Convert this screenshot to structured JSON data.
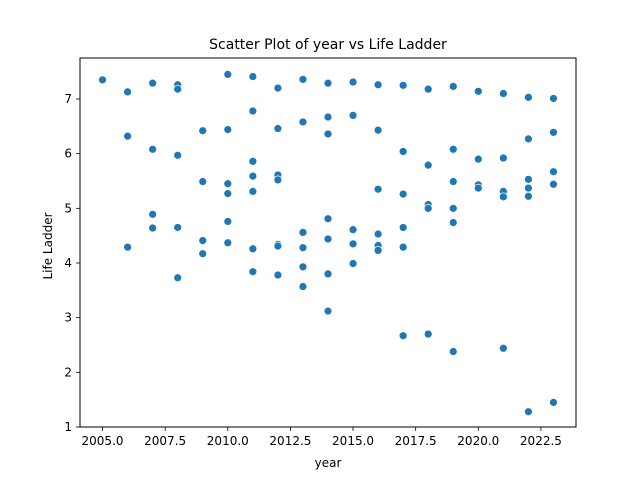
{
  "chart_data": {
    "type": "scatter",
    "title": "Scatter Plot of year vs Life Ladder",
    "xlabel": "year",
    "ylabel": "Life Ladder",
    "xlim": [
      2004.1,
      2023.9
    ],
    "ylim": [
      1.0,
      7.75
    ],
    "xticks": [
      2005.0,
      2007.5,
      2010.0,
      2012.5,
      2015.0,
      2017.5,
      2020.0,
      2022.5
    ],
    "xtick_labels": [
      "2005.0",
      "2007.5",
      "2010.0",
      "2012.5",
      "2015.0",
      "2017.5",
      "2020.0",
      "2022.5"
    ],
    "yticks": [
      1,
      2,
      3,
      4,
      5,
      6,
      7
    ],
    "ytick_labels": [
      "1",
      "2",
      "3",
      "4",
      "5",
      "6",
      "7"
    ],
    "grid": false,
    "marker_color": "#1f77b4",
    "points": [
      {
        "x": 2005,
        "y": 7.35
      },
      {
        "x": 2006,
        "y": 7.13
      },
      {
        "x": 2006,
        "y": 6.32
      },
      {
        "x": 2006,
        "y": 4.29
      },
      {
        "x": 2007,
        "y": 7.29
      },
      {
        "x": 2007,
        "y": 6.08
      },
      {
        "x": 2007,
        "y": 4.89
      },
      {
        "x": 2007,
        "y": 4.64
      },
      {
        "x": 2008,
        "y": 7.26
      },
      {
        "x": 2008,
        "y": 7.18
      },
      {
        "x": 2008,
        "y": 5.97
      },
      {
        "x": 2008,
        "y": 4.65
      },
      {
        "x": 2008,
        "y": 3.73
      },
      {
        "x": 2009,
        "y": 6.42
      },
      {
        "x": 2009,
        "y": 5.49
      },
      {
        "x": 2009,
        "y": 4.41
      },
      {
        "x": 2009,
        "y": 4.17
      },
      {
        "x": 2010,
        "y": 7.45
      },
      {
        "x": 2010,
        "y": 6.44
      },
      {
        "x": 2010,
        "y": 5.45
      },
      {
        "x": 2010,
        "y": 5.27
      },
      {
        "x": 2010,
        "y": 4.76
      },
      {
        "x": 2010,
        "y": 4.37
      },
      {
        "x": 2011,
        "y": 7.41
      },
      {
        "x": 2011,
        "y": 6.78
      },
      {
        "x": 2011,
        "y": 5.86
      },
      {
        "x": 2011,
        "y": 5.59
      },
      {
        "x": 2011,
        "y": 5.31
      },
      {
        "x": 2011,
        "y": 4.26
      },
      {
        "x": 2011,
        "y": 3.84
      },
      {
        "x": 2012,
        "y": 7.2
      },
      {
        "x": 2012,
        "y": 6.46
      },
      {
        "x": 2012,
        "y": 5.61
      },
      {
        "x": 2012,
        "y": 5.52
      },
      {
        "x": 2012,
        "y": 4.34
      },
      {
        "x": 2012,
        "y": 4.31
      },
      {
        "x": 2012,
        "y": 3.78
      },
      {
        "x": 2013,
        "y": 7.36
      },
      {
        "x": 2013,
        "y": 6.58
      },
      {
        "x": 2013,
        "y": 4.56
      },
      {
        "x": 2013,
        "y": 4.28
      },
      {
        "x": 2013,
        "y": 3.93
      },
      {
        "x": 2013,
        "y": 3.57
      },
      {
        "x": 2014,
        "y": 7.29
      },
      {
        "x": 2014,
        "y": 6.67
      },
      {
        "x": 2014,
        "y": 6.36
      },
      {
        "x": 2014,
        "y": 4.81
      },
      {
        "x": 2014,
        "y": 4.44
      },
      {
        "x": 2014,
        "y": 3.8
      },
      {
        "x": 2014,
        "y": 3.12
      },
      {
        "x": 2015,
        "y": 7.31
      },
      {
        "x": 2015,
        "y": 6.7
      },
      {
        "x": 2015,
        "y": 4.61
      },
      {
        "x": 2015,
        "y": 4.35
      },
      {
        "x": 2015,
        "y": 3.99
      },
      {
        "x": 2016,
        "y": 7.26
      },
      {
        "x": 2016,
        "y": 6.43
      },
      {
        "x": 2016,
        "y": 5.35
      },
      {
        "x": 2016,
        "y": 4.53
      },
      {
        "x": 2016,
        "y": 4.32
      },
      {
        "x": 2016,
        "y": 4.23
      },
      {
        "x": 2017,
        "y": 7.25
      },
      {
        "x": 2017,
        "y": 6.04
      },
      {
        "x": 2017,
        "y": 5.26
      },
      {
        "x": 2017,
        "y": 4.65
      },
      {
        "x": 2017,
        "y": 4.29
      },
      {
        "x": 2017,
        "y": 2.67
      },
      {
        "x": 2018,
        "y": 7.18
      },
      {
        "x": 2018,
        "y": 5.79
      },
      {
        "x": 2018,
        "y": 5.07
      },
      {
        "x": 2018,
        "y": 5.0
      },
      {
        "x": 2018,
        "y": 2.7
      },
      {
        "x": 2019,
        "y": 7.23
      },
      {
        "x": 2019,
        "y": 6.08
      },
      {
        "x": 2019,
        "y": 5.49
      },
      {
        "x": 2019,
        "y": 5.0
      },
      {
        "x": 2019,
        "y": 4.74
      },
      {
        "x": 2019,
        "y": 2.38
      },
      {
        "x": 2020,
        "y": 7.14
      },
      {
        "x": 2020,
        "y": 5.9
      },
      {
        "x": 2020,
        "y": 5.43
      },
      {
        "x": 2020,
        "y": 5.37
      },
      {
        "x": 2021,
        "y": 7.1
      },
      {
        "x": 2021,
        "y": 5.92
      },
      {
        "x": 2021,
        "y": 5.31
      },
      {
        "x": 2021,
        "y": 5.21
      },
      {
        "x": 2021,
        "y": 2.44
      },
      {
        "x": 2022,
        "y": 7.03
      },
      {
        "x": 2022,
        "y": 6.27
      },
      {
        "x": 2022,
        "y": 5.53
      },
      {
        "x": 2022,
        "y": 5.37
      },
      {
        "x": 2022,
        "y": 5.22
      },
      {
        "x": 2022,
        "y": 1.28
      },
      {
        "x": 2023,
        "y": 7.01
      },
      {
        "x": 2023,
        "y": 6.39
      },
      {
        "x": 2023,
        "y": 5.67
      },
      {
        "x": 2023,
        "y": 5.44
      },
      {
        "x": 2023,
        "y": 1.45
      }
    ]
  }
}
